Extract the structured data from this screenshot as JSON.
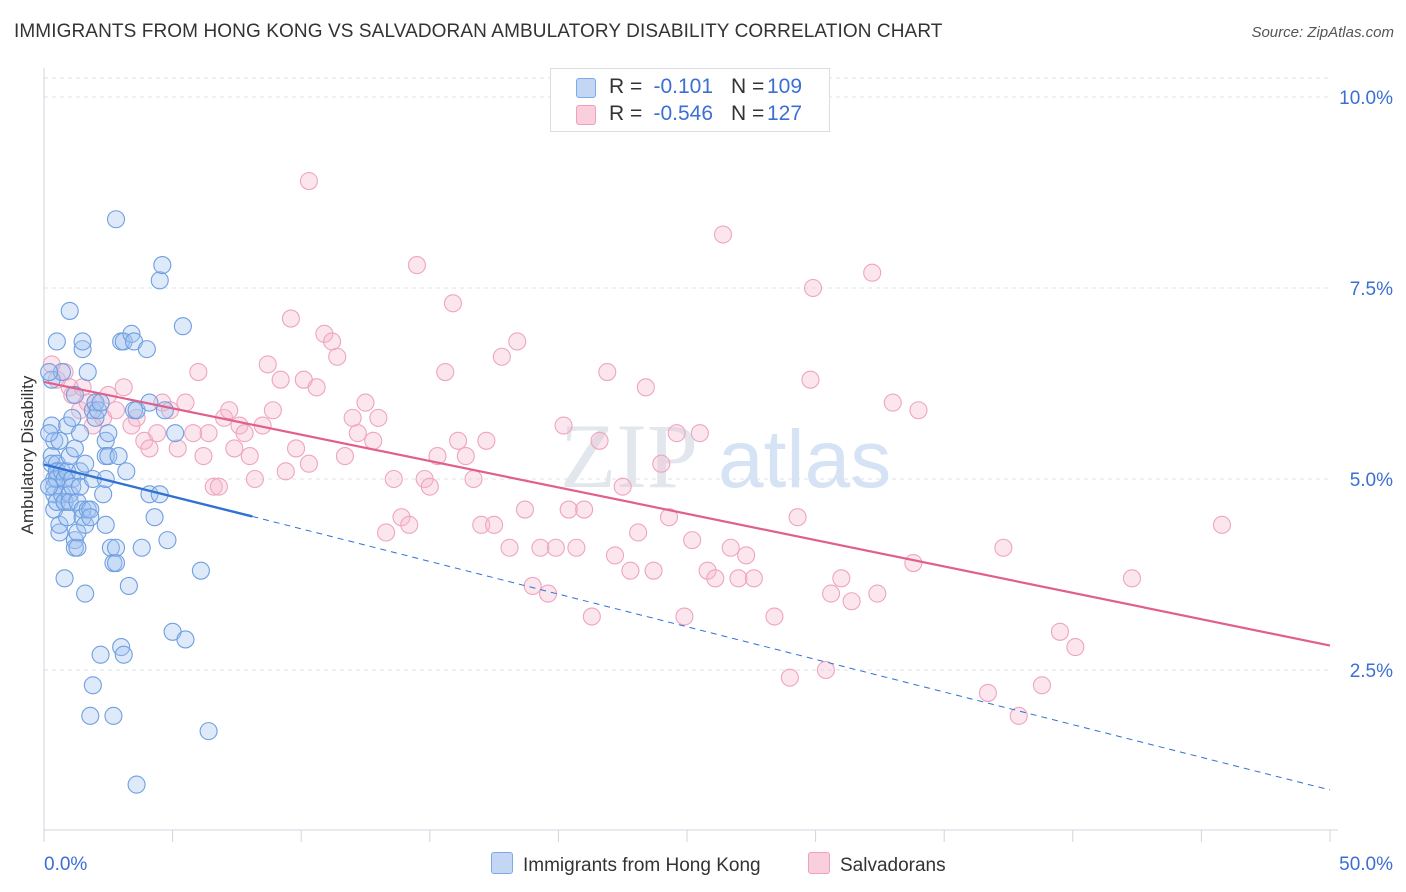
{
  "title": "IMMIGRANTS FROM HONG KONG VS SALVADORAN AMBULATORY DISABILITY CORRELATION CHART",
  "source": "Source: ZipAtlas.com",
  "watermark": {
    "zip": "ZIP",
    "atlas": "atlas"
  },
  "legend_top": {
    "rows": [
      {
        "r_label": "R =",
        "r_value": "-0.101",
        "n_label": "N =",
        "n_value": "109",
        "color": "#7aaae8"
      },
      {
        "r_label": "R =",
        "r_value": "-0.546",
        "n_label": "N =",
        "n_value": "127",
        "color": "#f0a0bc"
      }
    ]
  },
  "legend_bottom": [
    {
      "label": "Immigrants from Hong Kong",
      "color": "#7aaae8"
    },
    {
      "label": "Salvadorans",
      "color": "#f0a0bc"
    }
  ],
  "colors": {
    "blue": "#5b95e0",
    "blue_line": "#2f72d2",
    "pink": "#ee8fb0",
    "pink_line": "#e0608b",
    "axis_text": "#3b6fd4"
  },
  "chart_data": {
    "type": "scatter",
    "title": "IMMIGRANTS FROM HONG KONG VS SALVADORAN AMBULATORY DISABILITY CORRELATION CHART",
    "xlabel": "",
    "ylabel": "Ambulatory Disability",
    "xlim": [
      0,
      50
    ],
    "ylim": [
      0,
      10.5
    ],
    "x_tick_labels": [
      "0.0%",
      "50.0%"
    ],
    "y_ticks": [
      2.5,
      5.0,
      7.5,
      10.0
    ],
    "y_tick_labels": [
      "2.5%",
      "5.0%",
      "7.5%",
      "10.0%"
    ],
    "grid": true,
    "legend_position": "bottom",
    "series": [
      {
        "name": "Immigrants from Hong Kong",
        "trend": {
          "x": [
            0,
            8.1
          ],
          "y": [
            5.19,
            4.51
          ],
          "dashed_extension_to": [
            50,
            0.93
          ]
        },
        "points": [
          [
            0.3,
            5.7
          ],
          [
            0.3,
            6.3
          ],
          [
            0.3,
            5.3
          ],
          [
            0.3,
            5.2
          ],
          [
            0.4,
            5.0
          ],
          [
            0.4,
            4.6
          ],
          [
            0.4,
            5.5
          ],
          [
            0.4,
            4.9
          ],
          [
            0.4,
            4.8
          ],
          [
            0.5,
            6.8
          ],
          [
            0.5,
            5.2
          ],
          [
            0.5,
            5.1
          ],
          [
            0.5,
            5.1
          ],
          [
            0.5,
            5.0
          ],
          [
            0.5,
            4.7
          ],
          [
            0.6,
            4.3
          ],
          [
            0.6,
            5.5
          ],
          [
            0.6,
            4.4
          ],
          [
            0.7,
            4.8
          ],
          [
            0.7,
            6.4
          ],
          [
            0.7,
            5.1
          ],
          [
            0.8,
            4.7
          ],
          [
            0.8,
            5.0
          ],
          [
            0.8,
            3.7
          ],
          [
            0.8,
            4.7
          ],
          [
            0.9,
            5.7
          ],
          [
            0.9,
            5.1
          ],
          [
            0.9,
            4.5
          ],
          [
            1.0,
            4.8
          ],
          [
            1.0,
            7.2
          ],
          [
            1.0,
            5.3
          ],
          [
            1.0,
            4.7
          ],
          [
            1.1,
            5.0
          ],
          [
            1.1,
            4.9
          ],
          [
            1.1,
            5.8
          ],
          [
            1.2,
            6.1
          ],
          [
            1.2,
            5.4
          ],
          [
            1.2,
            4.2
          ],
          [
            1.2,
            4.1
          ],
          [
            1.3,
            4.1
          ],
          [
            1.3,
            4.7
          ],
          [
            1.3,
            4.3
          ],
          [
            1.4,
            5.6
          ],
          [
            1.4,
            5.1
          ],
          [
            1.4,
            4.9
          ],
          [
            1.5,
            6.7
          ],
          [
            1.5,
            6.8
          ],
          [
            1.5,
            4.6
          ],
          [
            1.5,
            4.5
          ],
          [
            1.6,
            5.2
          ],
          [
            1.6,
            4.4
          ],
          [
            1.6,
            3.5
          ],
          [
            1.7,
            6.4
          ],
          [
            1.7,
            4.6
          ],
          [
            1.8,
            4.6
          ],
          [
            1.8,
            4.5
          ],
          [
            1.8,
            1.9
          ],
          [
            1.9,
            5.9
          ],
          [
            1.9,
            5.0
          ],
          [
            1.9,
            2.3
          ],
          [
            2.0,
            6.0
          ],
          [
            2.0,
            5.8
          ],
          [
            2.1,
            5.9
          ],
          [
            2.2,
            2.7
          ],
          [
            2.2,
            6.0
          ],
          [
            2.3,
            4.8
          ],
          [
            2.4,
            5.5
          ],
          [
            2.4,
            4.4
          ],
          [
            2.4,
            5.3
          ],
          [
            2.4,
            5.0
          ],
          [
            2.5,
            5.3
          ],
          [
            2.5,
            5.6
          ],
          [
            2.6,
            4.1
          ],
          [
            2.7,
            3.9
          ],
          [
            2.7,
            1.9
          ],
          [
            2.8,
            8.4
          ],
          [
            2.8,
            3.9
          ],
          [
            2.8,
            4.1
          ],
          [
            2.9,
            5.3
          ],
          [
            3.0,
            6.8
          ],
          [
            3.0,
            2.8
          ],
          [
            3.1,
            6.8
          ],
          [
            3.1,
            2.7
          ],
          [
            3.2,
            5.1
          ],
          [
            3.3,
            3.6
          ],
          [
            3.4,
            6.9
          ],
          [
            3.5,
            5.9
          ],
          [
            3.5,
            6.8
          ],
          [
            3.6,
            5.9
          ],
          [
            3.6,
            1.0
          ],
          [
            3.8,
            4.1
          ],
          [
            4.0,
            6.7
          ],
          [
            4.1,
            6.0
          ],
          [
            4.1,
            4.8
          ],
          [
            4.3,
            4.5
          ],
          [
            4.5,
            4.8
          ],
          [
            4.5,
            7.6
          ],
          [
            4.6,
            7.8
          ],
          [
            4.7,
            5.9
          ],
          [
            4.8,
            4.2
          ],
          [
            5.0,
            3.0
          ],
          [
            5.1,
            5.6
          ],
          [
            5.4,
            7.0
          ],
          [
            5.5,
            2.9
          ],
          [
            6.1,
            3.8
          ],
          [
            6.4,
            1.7
          ],
          [
            0.2,
            6.4
          ],
          [
            0.2,
            4.9
          ],
          [
            0.2,
            5.6
          ]
        ]
      },
      {
        "name": "Salvadorans",
        "trend": {
          "x": [
            0,
            50
          ],
          "y": [
            6.27,
            2.82
          ]
        },
        "points": [
          [
            0.3,
            6.5
          ],
          [
            0.5,
            6.3
          ],
          [
            0.8,
            6.4
          ],
          [
            1.0,
            6.2
          ],
          [
            1.1,
            6.1
          ],
          [
            1.4,
            5.9
          ],
          [
            1.5,
            6.2
          ],
          [
            1.7,
            6.0
          ],
          [
            1.9,
            5.7
          ],
          [
            2.0,
            6.0
          ],
          [
            2.3,
            5.8
          ],
          [
            2.5,
            6.1
          ],
          [
            2.8,
            5.9
          ],
          [
            3.1,
            6.2
          ],
          [
            3.4,
            5.7
          ],
          [
            3.6,
            5.8
          ],
          [
            3.9,
            5.5
          ],
          [
            4.1,
            5.4
          ],
          [
            4.4,
            5.6
          ],
          [
            4.6,
            6.0
          ],
          [
            4.9,
            5.9
          ],
          [
            5.2,
            5.4
          ],
          [
            5.5,
            6.0
          ],
          [
            5.8,
            5.6
          ],
          [
            6.0,
            6.4
          ],
          [
            6.2,
            5.3
          ],
          [
            6.4,
            5.6
          ],
          [
            6.6,
            4.9
          ],
          [
            6.8,
            4.9
          ],
          [
            7.0,
            5.8
          ],
          [
            7.2,
            5.9
          ],
          [
            7.4,
            5.4
          ],
          [
            7.6,
            5.7
          ],
          [
            7.8,
            5.6
          ],
          [
            8.0,
            5.3
          ],
          [
            8.2,
            5.0
          ],
          [
            8.5,
            5.7
          ],
          [
            8.7,
            6.5
          ],
          [
            8.9,
            5.9
          ],
          [
            9.2,
            6.3
          ],
          [
            9.4,
            5.1
          ],
          [
            9.6,
            7.1
          ],
          [
            9.8,
            5.4
          ],
          [
            10.1,
            6.3
          ],
          [
            10.3,
            5.2
          ],
          [
            10.6,
            6.2
          ],
          [
            10.9,
            6.9
          ],
          [
            11.2,
            6.8
          ],
          [
            11.4,
            6.6
          ],
          [
            11.7,
            5.3
          ],
          [
            12.0,
            5.8
          ],
          [
            12.2,
            5.6
          ],
          [
            12.5,
            6.0
          ],
          [
            12.8,
            5.5
          ],
          [
            13.0,
            5.8
          ],
          [
            13.3,
            4.3
          ],
          [
            13.6,
            5.0
          ],
          [
            13.9,
            4.5
          ],
          [
            14.2,
            4.4
          ],
          [
            14.5,
            7.8
          ],
          [
            14.8,
            5.0
          ],
          [
            15.0,
            4.9
          ],
          [
            15.3,
            5.3
          ],
          [
            15.6,
            6.4
          ],
          [
            15.9,
            7.3
          ],
          [
            16.1,
            5.5
          ],
          [
            16.4,
            5.3
          ],
          [
            16.7,
            5.0
          ],
          [
            17.0,
            4.4
          ],
          [
            17.2,
            5.5
          ],
          [
            17.5,
            4.4
          ],
          [
            17.8,
            6.6
          ],
          [
            18.1,
            4.1
          ],
          [
            18.4,
            6.8
          ],
          [
            18.7,
            4.6
          ],
          [
            19.0,
            3.6
          ],
          [
            19.3,
            4.1
          ],
          [
            19.6,
            3.5
          ],
          [
            19.9,
            4.1
          ],
          [
            20.2,
            5.7
          ],
          [
            20.4,
            4.6
          ],
          [
            20.7,
            4.1
          ],
          [
            21.0,
            4.6
          ],
          [
            21.3,
            3.2
          ],
          [
            21.6,
            5.5
          ],
          [
            21.9,
            6.4
          ],
          [
            22.2,
            4.0
          ],
          [
            22.5,
            4.9
          ],
          [
            22.8,
            3.8
          ],
          [
            23.1,
            4.3
          ],
          [
            23.4,
            6.2
          ],
          [
            23.7,
            3.8
          ],
          [
            24.0,
            5.2
          ],
          [
            24.3,
            4.5
          ],
          [
            24.6,
            5.6
          ],
          [
            24.9,
            3.2
          ],
          [
            25.2,
            4.2
          ],
          [
            25.5,
            5.6
          ],
          [
            25.8,
            3.8
          ],
          [
            26.1,
            3.7
          ],
          [
            26.4,
            8.2
          ],
          [
            26.7,
            4.1
          ],
          [
            27.0,
            3.7
          ],
          [
            27.3,
            4.0
          ],
          [
            27.6,
            3.7
          ],
          [
            28.4,
            3.2
          ],
          [
            29.0,
            2.4
          ],
          [
            29.3,
            4.5
          ],
          [
            29.9,
            7.5
          ],
          [
            29.8,
            6.3
          ],
          [
            30.4,
            2.5
          ],
          [
            30.6,
            3.5
          ],
          [
            31.0,
            3.7
          ],
          [
            31.4,
            3.4
          ],
          [
            32.2,
            7.7
          ],
          [
            32.4,
            3.5
          ],
          [
            33.0,
            6.0
          ],
          [
            33.8,
            3.9
          ],
          [
            34.0,
            5.9
          ],
          [
            36.7,
            2.2
          ],
          [
            37.3,
            4.1
          ],
          [
            37.9,
            1.9
          ],
          [
            38.8,
            2.3
          ],
          [
            39.5,
            3.0
          ],
          [
            40.1,
            2.8
          ],
          [
            42.3,
            3.7
          ],
          [
            45.8,
            4.4
          ]
        ],
        "outliers": [
          [
            10.3,
            8.9
          ]
        ]
      }
    ]
  }
}
